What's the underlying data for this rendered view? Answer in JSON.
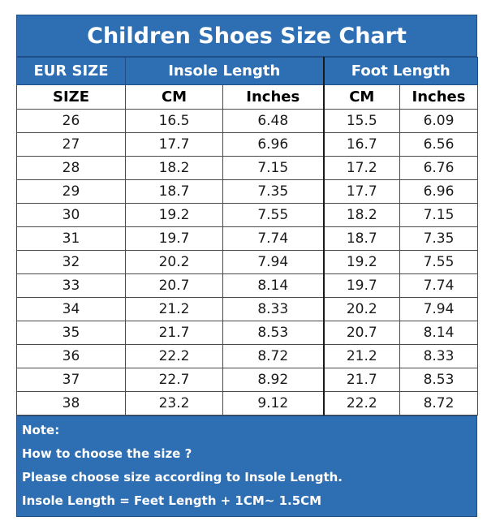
{
  "title": "Children Shoes Size Chart",
  "header": {
    "group": {
      "eur": "EUR SIZE",
      "insole": "Insole Length",
      "foot": "Foot Length"
    },
    "sub": {
      "size": "SIZE",
      "insole_cm": "CM",
      "insole_in": "Inches",
      "foot_cm": "CM",
      "foot_in": "Inches"
    }
  },
  "rows": [
    [
      "26",
      "16.5",
      "6.48",
      "15.5",
      "6.09"
    ],
    [
      "27",
      "17.7",
      "6.96",
      "16.7",
      "6.56"
    ],
    [
      "28",
      "18.2",
      "7.15",
      "17.2",
      "6.76"
    ],
    [
      "29",
      "18.7",
      "7.35",
      "17.7",
      "6.96"
    ],
    [
      "30",
      "19.2",
      "7.55",
      "18.2",
      "7.15"
    ],
    [
      "31",
      "19.7",
      "7.74",
      "18.7",
      "7.35"
    ],
    [
      "32",
      "20.2",
      "7.94",
      "19.2",
      "7.55"
    ],
    [
      "33",
      "20.7",
      "8.14",
      "19.7",
      "7.74"
    ],
    [
      "34",
      "21.2",
      "8.33",
      "20.2",
      "7.94"
    ],
    [
      "35",
      "21.7",
      "8.53",
      "20.7",
      "8.14"
    ],
    [
      "36",
      "22.2",
      "8.72",
      "21.2",
      "8.33"
    ],
    [
      "37",
      "22.7",
      "8.92",
      "21.7",
      "8.53"
    ],
    [
      "38",
      "23.2",
      "9.12",
      "22.2",
      "8.72"
    ]
  ],
  "note": {
    "heading": "Note:",
    "lines": [
      "How to choose the size ?",
      "Please choose size according to Insole Length.",
      "Insole Length = Feet Length + 1CM~ 1.5CM"
    ]
  },
  "colors": {
    "header_blue": "#2e6fb3",
    "header_text": "#ffffff",
    "grid": "#4a4a4a"
  }
}
